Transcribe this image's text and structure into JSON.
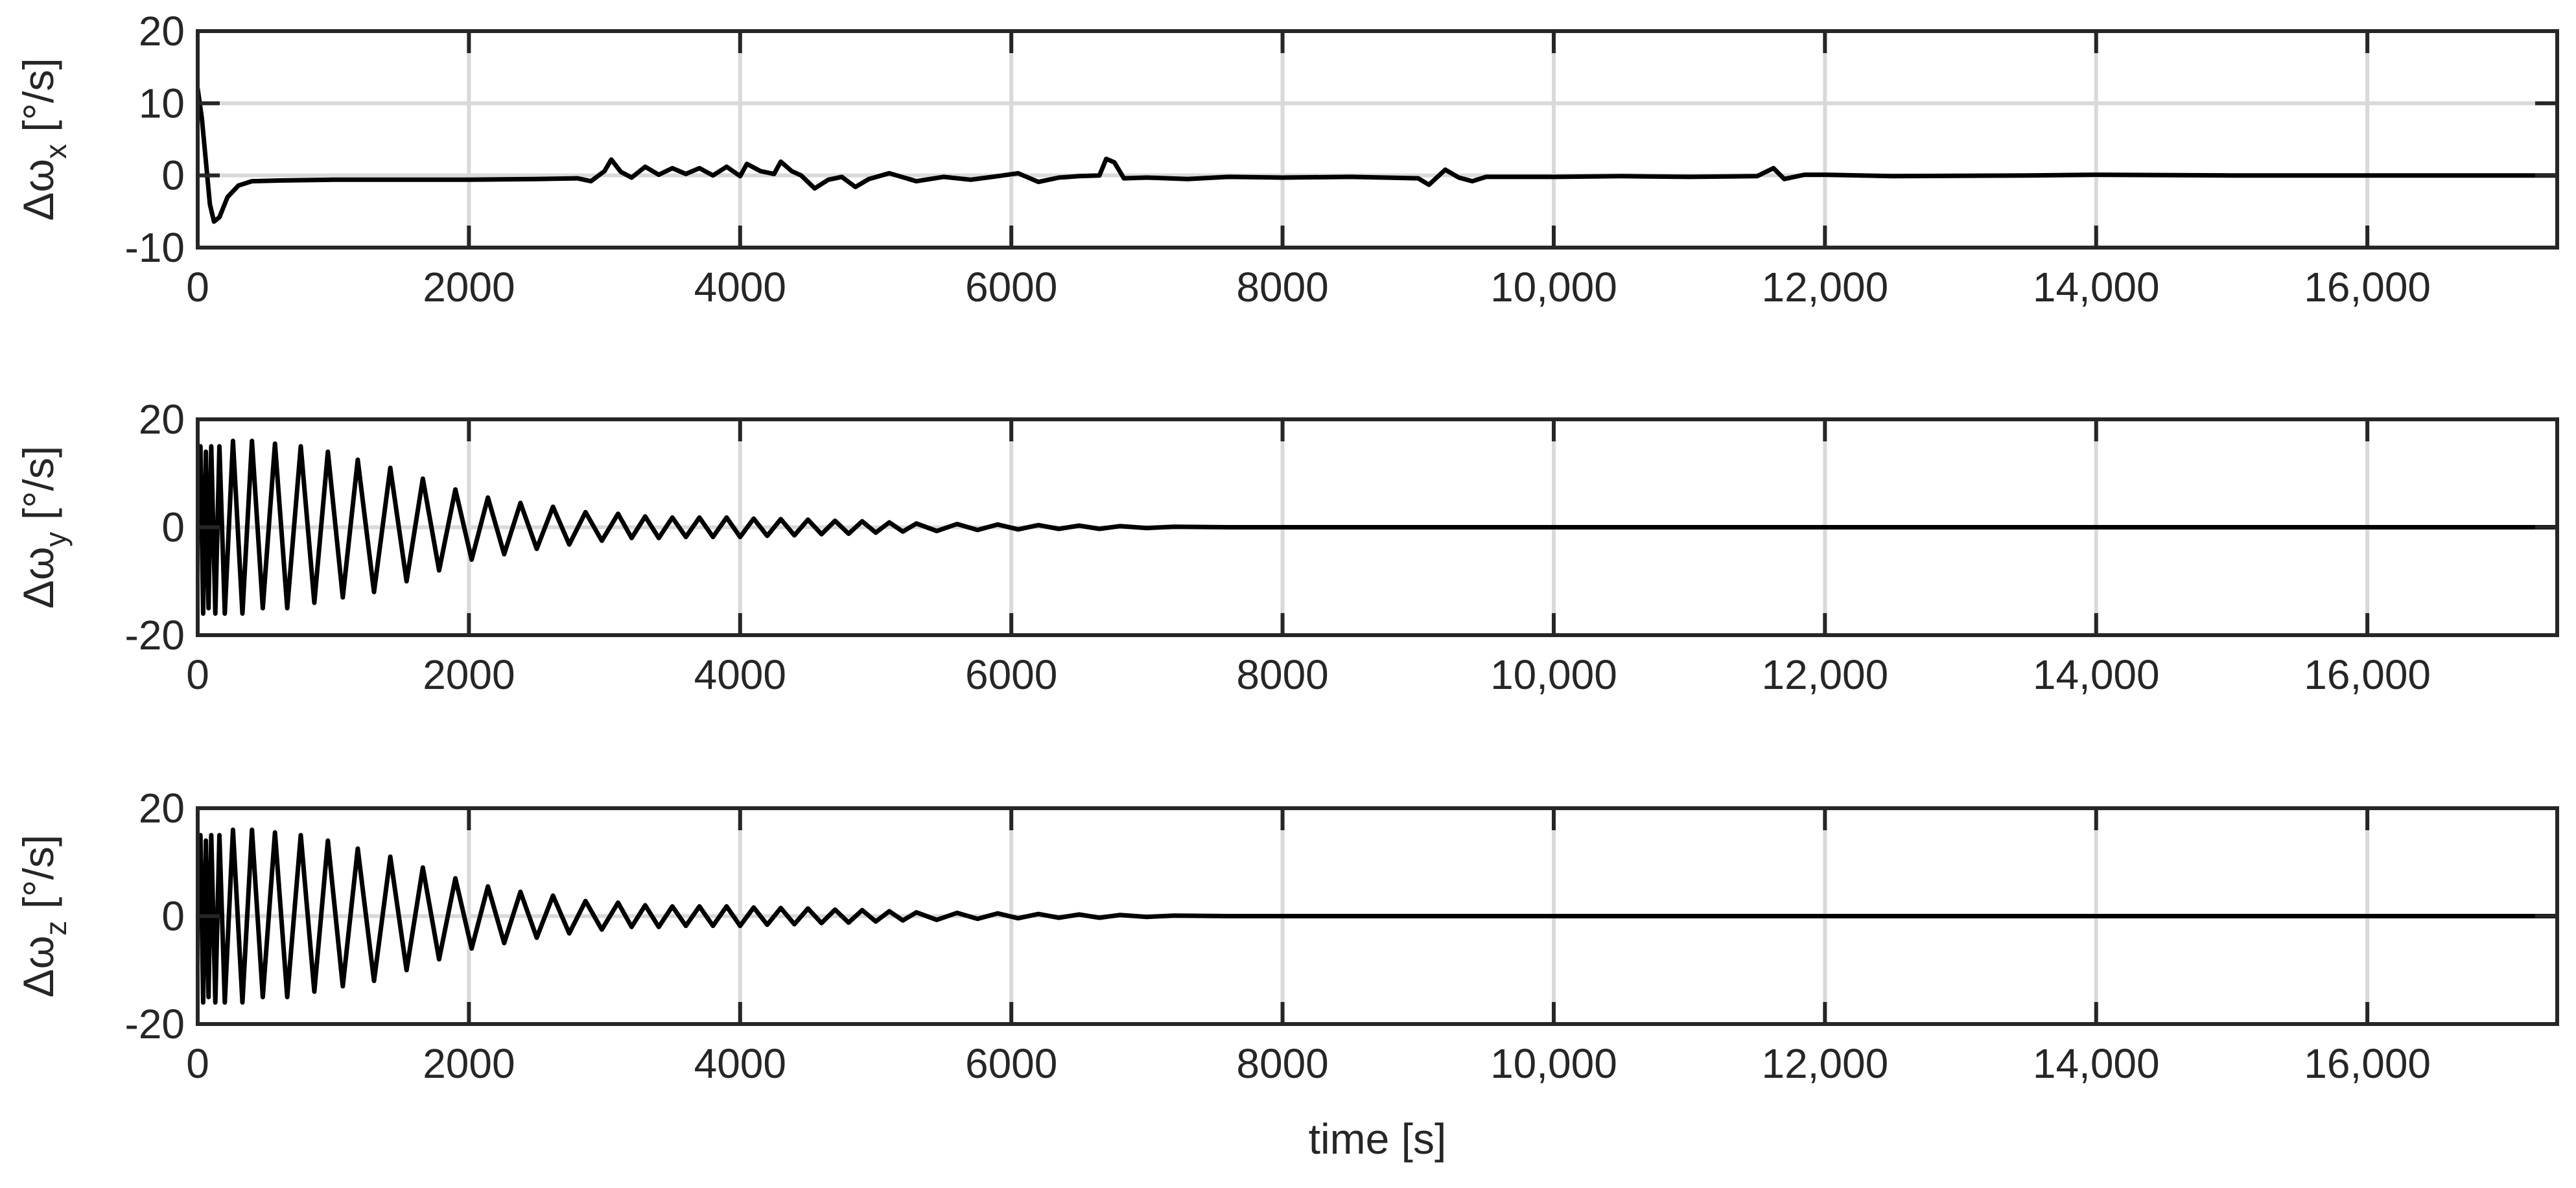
{
  "chart_data": [
    {
      "type": "line",
      "title": "",
      "ylabel": {
        "main": "Δω",
        "sub": "x",
        "unit": " [°/s]"
      },
      "xlabel": "",
      "xlim": [
        0,
        17400
      ],
      "ylim": [
        -10,
        20
      ],
      "xticks": [
        0,
        2000,
        4000,
        6000,
        8000,
        10000,
        12000,
        14000,
        16000
      ],
      "xtick_labels": [
        "0",
        "2000",
        "4000",
        "6000",
        "8000",
        "10,000",
        "12,000",
        "14,000",
        "16,000"
      ],
      "yticks": [
        -10,
        0,
        10,
        20
      ],
      "ytick_labels": [
        "-10",
        "0",
        "10",
        "20"
      ],
      "grid": true,
      "series": [
        {
          "points": [
            [
              0,
              12
            ],
            [
              30,
              8
            ],
            [
              60,
              2
            ],
            [
              90,
              -4
            ],
            [
              120,
              -6.4
            ],
            [
              160,
              -5.8
            ],
            [
              220,
              -3
            ],
            [
              300,
              -1.4
            ],
            [
              400,
              -0.8
            ],
            [
              600,
              -0.7
            ],
            [
              1000,
              -0.6
            ],
            [
              1500,
              -0.6
            ],
            [
              2000,
              -0.6
            ],
            [
              2500,
              -0.5
            ],
            [
              2800,
              -0.4
            ],
            [
              2900,
              -0.8
            ],
            [
              3000,
              0.6
            ],
            [
              3050,
              2.2
            ],
            [
              3120,
              0.5
            ],
            [
              3200,
              -0.3
            ],
            [
              3300,
              1.2
            ],
            [
              3400,
              0.1
            ],
            [
              3500,
              1
            ],
            [
              3600,
              0.2
            ],
            [
              3700,
              1
            ],
            [
              3800,
              0
            ],
            [
              3900,
              1.2
            ],
            [
              4000,
              -0.1
            ],
            [
              4050,
              1.6
            ],
            [
              4150,
              0.6
            ],
            [
              4250,
              0.2
            ],
            [
              4300,
              1.9
            ],
            [
              4380,
              0.6
            ],
            [
              4450,
              0
            ],
            [
              4550,
              -1.8
            ],
            [
              4650,
              -0.6
            ],
            [
              4750,
              -0.2
            ],
            [
              4850,
              -1.6
            ],
            [
              4950,
              -0.5
            ],
            [
              5100,
              0.3
            ],
            [
              5300,
              -0.8
            ],
            [
              5500,
              -0.2
            ],
            [
              5700,
              -0.6
            ],
            [
              5900,
              -0.1
            ],
            [
              6050,
              0.3
            ],
            [
              6200,
              -0.9
            ],
            [
              6350,
              -0.3
            ],
            [
              6500,
              -0.1
            ],
            [
              6650,
              0
            ],
            [
              6700,
              2.3
            ],
            [
              6760,
              1.8
            ],
            [
              6830,
              -0.4
            ],
            [
              7000,
              -0.3
            ],
            [
              7300,
              -0.5
            ],
            [
              7600,
              -0.2
            ],
            [
              8000,
              -0.3
            ],
            [
              8500,
              -0.2
            ],
            [
              9000,
              -0.4
            ],
            [
              9080,
              -1.3
            ],
            [
              9200,
              0.8
            ],
            [
              9300,
              -0.3
            ],
            [
              9400,
              -0.8
            ],
            [
              9500,
              -0.2
            ],
            [
              10000,
              -0.2
            ],
            [
              10500,
              -0.1
            ],
            [
              11000,
              -0.2
            ],
            [
              11500,
              -0.1
            ],
            [
              11620,
              1
            ],
            [
              11700,
              -0.5
            ],
            [
              11850,
              0.1
            ],
            [
              12000,
              0.1
            ],
            [
              12500,
              -0.1
            ],
            [
              13500,
              0
            ],
            [
              14000,
              0.1
            ],
            [
              15000,
              0
            ],
            [
              16000,
              0
            ],
            [
              17400,
              0
            ]
          ]
        }
      ]
    },
    {
      "type": "line",
      "title": "",
      "ylabel": {
        "main": "Δω",
        "sub": "y",
        "unit": " [°/s]"
      },
      "xlabel": "",
      "xlim": [
        0,
        17400
      ],
      "ylim": [
        -20,
        20
      ],
      "xticks": [
        0,
        2000,
        4000,
        6000,
        8000,
        10000,
        12000,
        14000,
        16000
      ],
      "xtick_labels": [
        "0",
        "2000",
        "4000",
        "6000",
        "8000",
        "10,000",
        "12,000",
        "14,000",
        "16,000"
      ],
      "yticks": [
        -20,
        0,
        20
      ],
      "ytick_labels": [
        "-20",
        "0",
        "20"
      ],
      "grid": true,
      "series": [
        {
          "points": [
            [
              0,
              0
            ],
            [
              20,
              15
            ],
            [
              40,
              -16
            ],
            [
              60,
              14
            ],
            [
              80,
              -15
            ],
            [
              100,
              15
            ],
            [
              130,
              -16
            ],
            [
              160,
              15
            ],
            [
              200,
              -16
            ],
            [
              260,
              16
            ],
            [
              330,
              -16
            ],
            [
              400,
              16
            ],
            [
              480,
              -15
            ],
            [
              570,
              15.5
            ],
            [
              660,
              -15
            ],
            [
              760,
              15
            ],
            [
              860,
              -14
            ],
            [
              960,
              14
            ],
            [
              1070,
              -13
            ],
            [
              1180,
              12.5
            ],
            [
              1300,
              -12
            ],
            [
              1420,
              11
            ],
            [
              1540,
              -10
            ],
            [
              1660,
              9
            ],
            [
              1780,
              -8
            ],
            [
              1900,
              7
            ],
            [
              2020,
              -6
            ],
            [
              2140,
              5.5
            ],
            [
              2260,
              -5
            ],
            [
              2380,
              4.5
            ],
            [
              2500,
              -4
            ],
            [
              2620,
              3.8
            ],
            [
              2740,
              -3.2
            ],
            [
              2860,
              2.8
            ],
            [
              2980,
              -2.5
            ],
            [
              3100,
              2.5
            ],
            [
              3200,
              -2
            ],
            [
              3300,
              2
            ],
            [
              3400,
              -2
            ],
            [
              3500,
              1.8
            ],
            [
              3600,
              -1.8
            ],
            [
              3700,
              1.8
            ],
            [
              3800,
              -1.8
            ],
            [
              3900,
              1.8
            ],
            [
              4000,
              -1.8
            ],
            [
              4100,
              1.6
            ],
            [
              4200,
              -1.6
            ],
            [
              4300,
              1.5
            ],
            [
              4400,
              -1.5
            ],
            [
              4500,
              1.4
            ],
            [
              4600,
              -1.3
            ],
            [
              4700,
              1.2
            ],
            [
              4800,
              -1.2
            ],
            [
              4900,
              1.1
            ],
            [
              5000,
              -1
            ],
            [
              5100,
              0.9
            ],
            [
              5200,
              -0.8
            ],
            [
              5300,
              0.7
            ],
            [
              5450,
              -0.7
            ],
            [
              5600,
              0.6
            ],
            [
              5750,
              -0.5
            ],
            [
              5900,
              0.5
            ],
            [
              6050,
              -0.4
            ],
            [
              6200,
              0.4
            ],
            [
              6350,
              -0.3
            ],
            [
              6500,
              0.3
            ],
            [
              6650,
              -0.3
            ],
            [
              6800,
              0.2
            ],
            [
              7000,
              -0.15
            ],
            [
              7200,
              0.1
            ],
            [
              7600,
              0
            ],
            [
              8500,
              0
            ],
            [
              10000,
              0
            ],
            [
              12000,
              0
            ],
            [
              14000,
              0
            ],
            [
              16000,
              0
            ],
            [
              17400,
              0
            ]
          ]
        }
      ]
    },
    {
      "type": "line",
      "title": "",
      "ylabel": {
        "main": "Δω",
        "sub": "z",
        "unit": " [°/s]"
      },
      "xlabel": "time [s]",
      "xlim": [
        0,
        17400
      ],
      "ylim": [
        -20,
        20
      ],
      "xticks": [
        0,
        2000,
        4000,
        6000,
        8000,
        10000,
        12000,
        14000,
        16000
      ],
      "xtick_labels": [
        "0",
        "2000",
        "4000",
        "6000",
        "8000",
        "10,000",
        "12,000",
        "14,000",
        "16,000"
      ],
      "yticks": [
        -20,
        0,
        20
      ],
      "ytick_labels": [
        "-20",
        "0",
        "20"
      ],
      "grid": true,
      "series": [
        {
          "points": [
            [
              0,
              0
            ],
            [
              20,
              15
            ],
            [
              40,
              -16
            ],
            [
              60,
              14
            ],
            [
              80,
              -15
            ],
            [
              100,
              15
            ],
            [
              130,
              -16
            ],
            [
              160,
              15
            ],
            [
              200,
              -16
            ],
            [
              260,
              16
            ],
            [
              330,
              -16
            ],
            [
              400,
              16
            ],
            [
              480,
              -15
            ],
            [
              570,
              15.5
            ],
            [
              660,
              -15
            ],
            [
              760,
              15
            ],
            [
              860,
              -14
            ],
            [
              960,
              14
            ],
            [
              1070,
              -13
            ],
            [
              1180,
              12.5
            ],
            [
              1300,
              -12
            ],
            [
              1420,
              11
            ],
            [
              1540,
              -10
            ],
            [
              1660,
              9
            ],
            [
              1780,
              -8
            ],
            [
              1900,
              7
            ],
            [
              2020,
              -6
            ],
            [
              2140,
              5.5
            ],
            [
              2260,
              -5
            ],
            [
              2380,
              4.5
            ],
            [
              2500,
              -4
            ],
            [
              2620,
              3.8
            ],
            [
              2740,
              -3.2
            ],
            [
              2860,
              2.8
            ],
            [
              2980,
              -2.5
            ],
            [
              3100,
              2.5
            ],
            [
              3200,
              -2
            ],
            [
              3300,
              2
            ],
            [
              3400,
              -2
            ],
            [
              3500,
              1.8
            ],
            [
              3600,
              -1.8
            ],
            [
              3700,
              1.8
            ],
            [
              3800,
              -1.8
            ],
            [
              3900,
              1.8
            ],
            [
              4000,
              -1.8
            ],
            [
              4100,
              1.6
            ],
            [
              4200,
              -1.6
            ],
            [
              4300,
              1.5
            ],
            [
              4400,
              -1.5
            ],
            [
              4500,
              1.4
            ],
            [
              4600,
              -1.3
            ],
            [
              4700,
              1.2
            ],
            [
              4800,
              -1.2
            ],
            [
              4900,
              1.1
            ],
            [
              5000,
              -1
            ],
            [
              5100,
              0.9
            ],
            [
              5200,
              -0.8
            ],
            [
              5300,
              0.7
            ],
            [
              5450,
              -0.7
            ],
            [
              5600,
              0.6
            ],
            [
              5750,
              -0.5
            ],
            [
              5900,
              0.5
            ],
            [
              6050,
              -0.4
            ],
            [
              6200,
              0.4
            ],
            [
              6350,
              -0.3
            ],
            [
              6500,
              0.3
            ],
            [
              6650,
              -0.3
            ],
            [
              6800,
              0.2
            ],
            [
              7000,
              -0.15
            ],
            [
              7200,
              0.1
            ],
            [
              7600,
              0
            ],
            [
              8500,
              0
            ],
            [
              10000,
              0
            ],
            [
              12000,
              0
            ],
            [
              14000,
              0
            ],
            [
              16000,
              0
            ],
            [
              17400,
              0
            ]
          ]
        }
      ]
    }
  ]
}
